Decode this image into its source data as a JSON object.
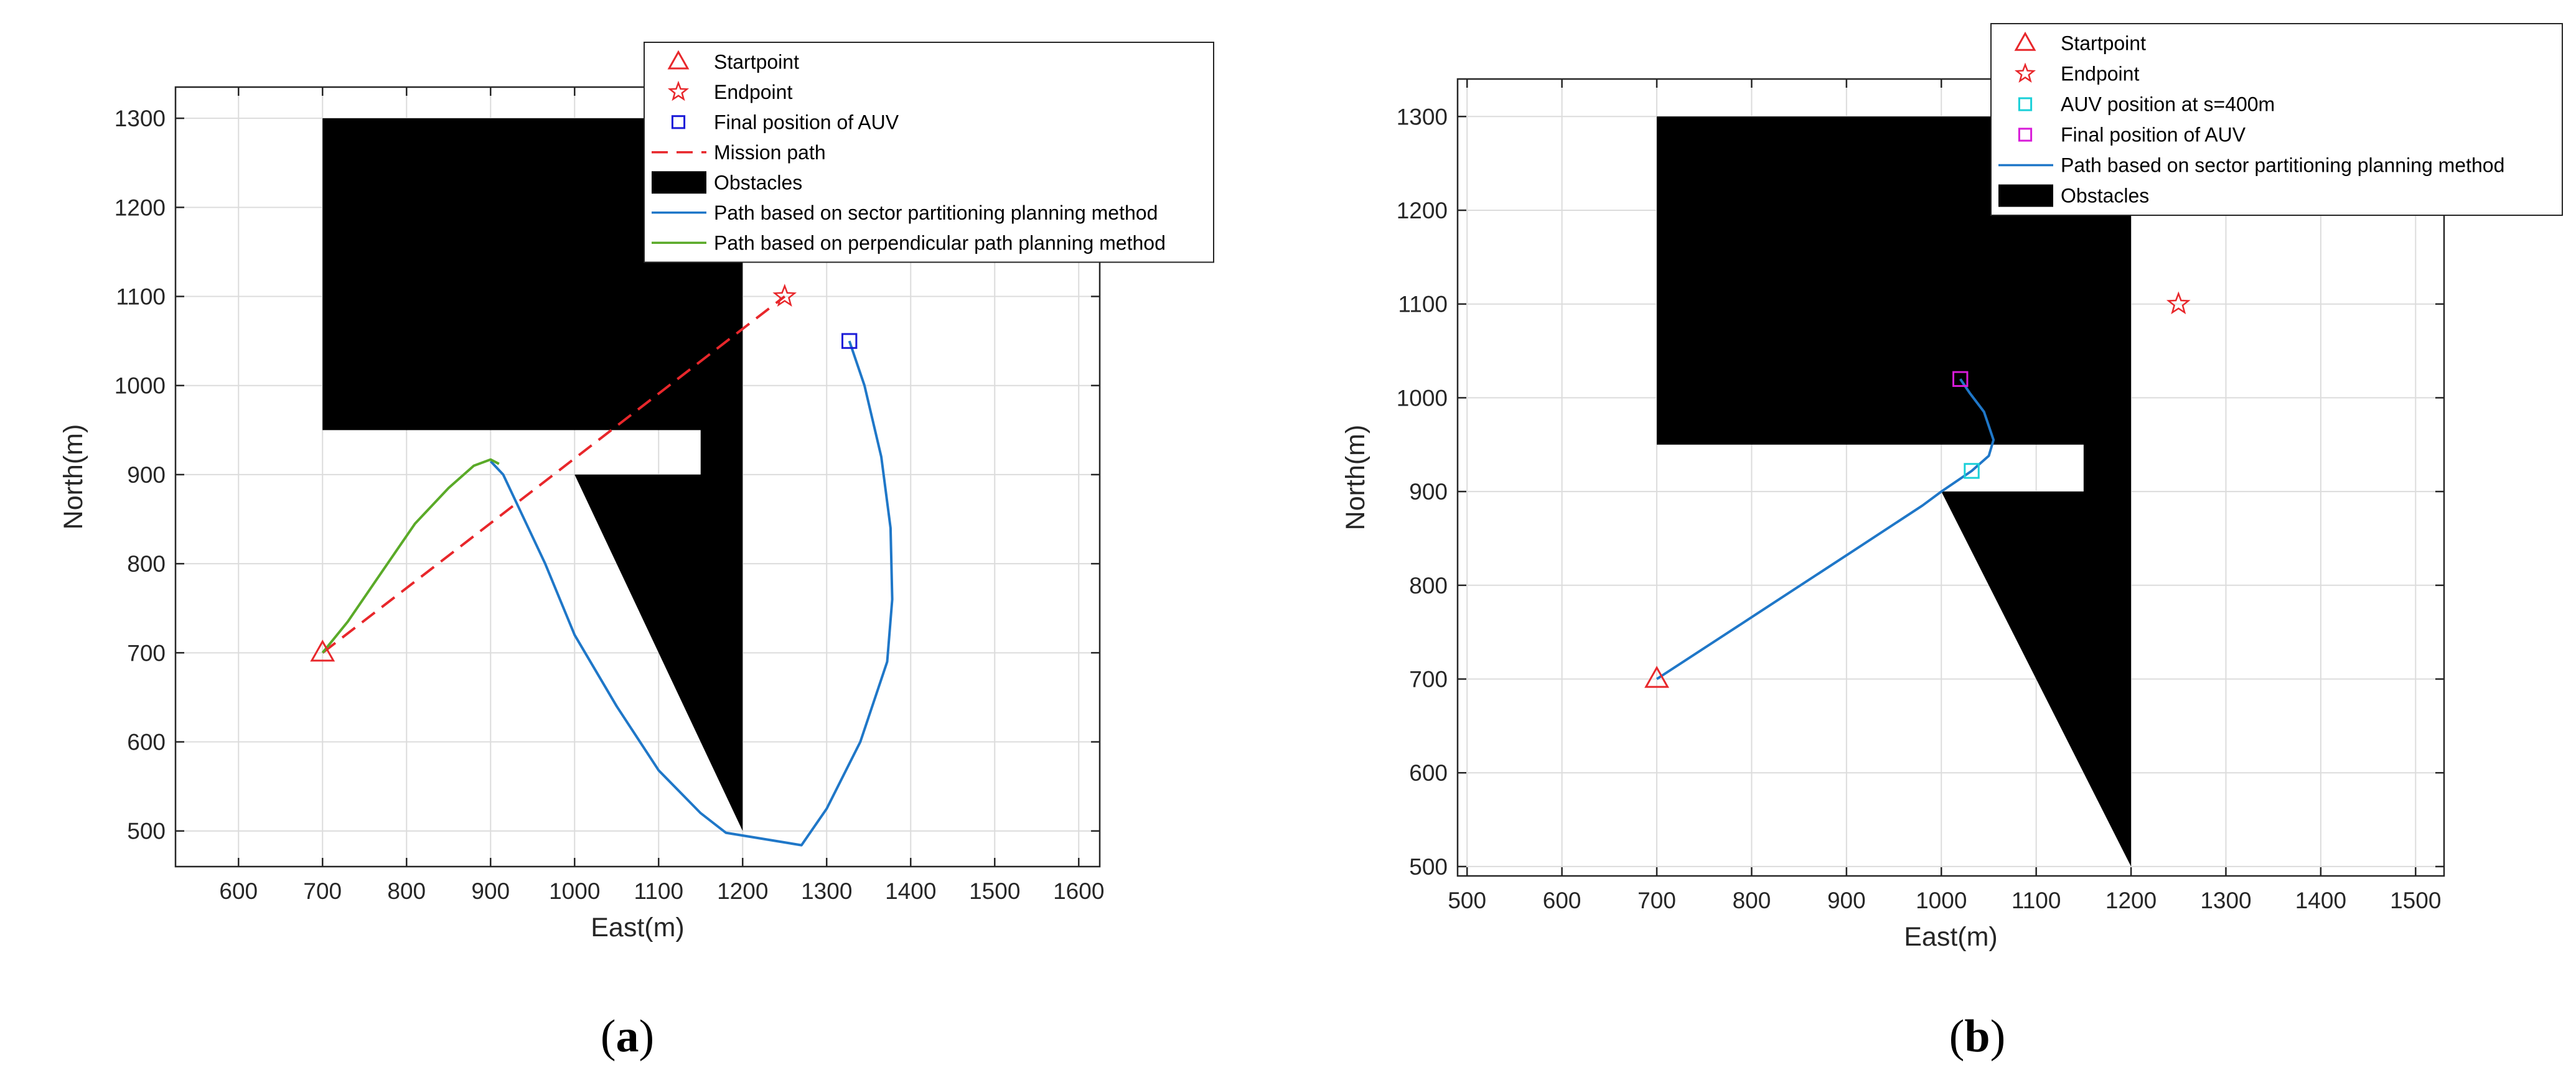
{
  "chart_data": [
    {
      "type": "line",
      "caption_letter": "a",
      "xlabel": "East(m)",
      "ylabel": "North(m)",
      "xlim": [
        525,
        1625
      ],
      "ylim": [
        460,
        1335
      ],
      "xticks": [
        600,
        700,
        800,
        900,
        1000,
        1100,
        1200,
        1300,
        1400,
        1500,
        1600
      ],
      "yticks": [
        500,
        600,
        700,
        800,
        900,
        1000,
        1100,
        1200,
        1300
      ],
      "grid": true,
      "legend_position": "top-right",
      "obstacles": [
        {
          "name": "Obstacles",
          "points": [
            [
              700,
              1300
            ],
            [
              1200,
              1300
            ],
            [
              1200,
              500
            ],
            [
              1000,
              900
            ],
            [
              1150,
              900
            ],
            [
              1150,
              950
            ],
            [
              700,
              950
            ]
          ]
        }
      ],
      "series": [
        {
          "name": "Startpoint",
          "kind": "marker",
          "marker": "triangle",
          "color": "#e8272b",
          "points": [
            [
              700,
              700
            ]
          ]
        },
        {
          "name": "Endpoint",
          "kind": "marker",
          "marker": "star",
          "color": "#e8272b",
          "points": [
            [
              1250,
              1100
            ]
          ]
        },
        {
          "name": "Final position of AUV",
          "kind": "marker",
          "marker": "square",
          "color": "#1b1bd8",
          "points": [
            [
              1327,
              1050
            ]
          ]
        },
        {
          "name": "Mission path",
          "kind": "dashed",
          "color": "#e8272b",
          "points": [
            [
              700,
              700
            ],
            [
              1250,
              1100
            ]
          ]
        },
        {
          "name": "Obstacles",
          "kind": "patch",
          "color": "#000000",
          "points": []
        },
        {
          "name": "Path based on sector partitioning planning method",
          "kind": "line",
          "color": "#1f77c8",
          "points": [
            [
              900,
              915
            ],
            [
              915,
              900
            ],
            [
              935,
              860
            ],
            [
              965,
              800
            ],
            [
              1000,
              720
            ],
            [
              1050,
              640
            ],
            [
              1100,
              568
            ],
            [
              1150,
              520
            ],
            [
              1180,
              498
            ],
            [
              1270,
              484
            ],
            [
              1300,
              525
            ],
            [
              1340,
              600
            ],
            [
              1372,
              690
            ],
            [
              1378,
              760
            ],
            [
              1376,
              840
            ],
            [
              1365,
              920
            ],
            [
              1345,
              1000
            ],
            [
              1327,
              1050
            ]
          ]
        },
        {
          "name": "Path based on perpendicular path planning method",
          "kind": "line",
          "color": "#5aaa28",
          "points": [
            [
              700,
              700
            ],
            [
              730,
              735
            ],
            [
              770,
              790
            ],
            [
              810,
              845
            ],
            [
              850,
              885
            ],
            [
              880,
              910
            ],
            [
              900,
              917
            ],
            [
              910,
              912
            ]
          ]
        }
      ]
    },
    {
      "type": "line",
      "caption_letter": "b",
      "xlabel": "East(m)",
      "ylabel": "North(m)",
      "xlim": [
        490,
        1530
      ],
      "ylim": [
        490,
        1340
      ],
      "xticks": [
        500,
        600,
        700,
        800,
        900,
        1000,
        1100,
        1200,
        1300,
        1400,
        1500
      ],
      "yticks": [
        500,
        600,
        700,
        800,
        900,
        1000,
        1100,
        1200,
        1300
      ],
      "grid": true,
      "legend_position": "top-right",
      "obstacles": [
        {
          "name": "Obstacles",
          "points": [
            [
              700,
              1300
            ],
            [
              1200,
              1300
            ],
            [
              1200,
              500
            ],
            [
              1000,
              900
            ],
            [
              1150,
              900
            ],
            [
              1150,
              950
            ],
            [
              700,
              950
            ]
          ]
        }
      ],
      "series": [
        {
          "name": "Startpoint",
          "kind": "marker",
          "marker": "triangle",
          "color": "#e8272b",
          "points": [
            [
              700,
              700
            ]
          ]
        },
        {
          "name": "Endpoint",
          "kind": "marker",
          "marker": "star",
          "color": "#e8272b",
          "points": [
            [
              1250,
              1100
            ]
          ]
        },
        {
          "name": "AUV position at s=400m",
          "kind": "marker",
          "marker": "square",
          "color": "#1ad0d8",
          "points": [
            [
              1032,
              922
            ]
          ]
        },
        {
          "name": "Final position of AUV",
          "kind": "marker",
          "marker": "square",
          "color": "#d81bd8",
          "points": [
            [
              1020,
              1020
            ]
          ]
        },
        {
          "name": "Path based on sector partitioning planning method",
          "kind": "line",
          "color": "#1f77c8",
          "points": [
            [
              700,
              700
            ],
            [
              800,
              766
            ],
            [
              900,
              832
            ],
            [
              980,
              885
            ],
            [
              1000,
              900
            ],
            [
              1032,
              922
            ],
            [
              1050,
              938
            ],
            [
              1055,
              955
            ],
            [
              1045,
              985
            ],
            [
              1030,
              1005
            ],
            [
              1020,
              1020
            ]
          ]
        },
        {
          "name": "Obstacles",
          "kind": "patch",
          "color": "#000000",
          "points": []
        }
      ]
    }
  ]
}
